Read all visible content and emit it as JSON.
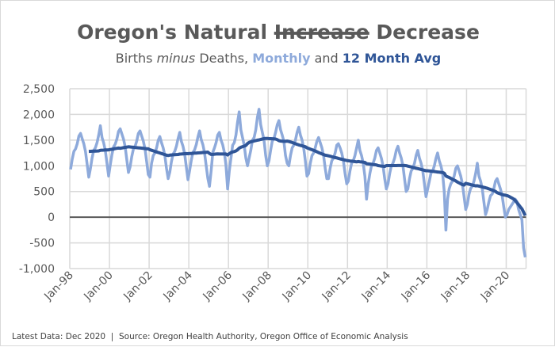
{
  "title": {
    "part1": "Oregon's Natural ",
    "struck": "Increase",
    "part2": " Decrease"
  },
  "subtitle": {
    "part1": "Births ",
    "italic": "minus",
    "part2": " Deaths, ",
    "monthly": "Monthly",
    "and": " and ",
    "avg": "12 Month Avg"
  },
  "footer": "Latest Data: Dec 2020  |  Source: Oregon Health Authority, Oregon Office of Economic Analysis",
  "colors": {
    "monthly": "#8eaadb",
    "avg": "#2f5597",
    "zero_line": "#595959",
    "grid": "#d9d9d9",
    "text": "#595959"
  },
  "chart_data": {
    "type": "line",
    "title": "Oregon's Natural Increase Decrease",
    "subtitle": "Births minus Deaths, Monthly and 12 Month Avg",
    "x_start": "Jan-98",
    "x_end": "Dec-20",
    "x_frequency": "monthly",
    "xticks": [
      "Jan-98",
      "Jan-00",
      "Jan-02",
      "Jan-04",
      "Jan-06",
      "Jan-08",
      "Jan-10",
      "Jan-12",
      "Jan-14",
      "Jan-16",
      "Jan-18",
      "Jan-20"
    ],
    "ylim": [
      -1000,
      2500
    ],
    "yticks": [
      -1000,
      -500,
      0,
      500,
      1000,
      1500,
      2000,
      2500
    ],
    "ytick_labels": [
      "-1,000",
      "-500",
      "0",
      "500",
      "1,000",
      "1,500",
      "2,000",
      "2,500"
    ],
    "grid": true,
    "legend": "none (colored subtitle)",
    "series": [
      {
        "name": "Monthly",
        "years": {
          "1998": [
            930,
            1130,
            1280,
            1330,
            1430,
            1580,
            1630,
            1530,
            1430,
            1280,
            1030,
            780
          ],
          "1999": [
            950,
            1150,
            1300,
            1350,
            1450,
            1600,
            1780,
            1550,
            1450,
            1300,
            1050,
            800
          ],
          "2000": [
            1020,
            1220,
            1370,
            1420,
            1520,
            1670,
            1720,
            1620,
            1520,
            1370,
            1120,
            870
          ],
          "2001": [
            980,
            1180,
            1330,
            1380,
            1480,
            1630,
            1680,
            1580,
            1480,
            1330,
            1080,
            830
          ],
          "2002": [
            780,
            1050,
            1200,
            1250,
            1350,
            1500,
            1570,
            1450,
            1350,
            1200,
            950,
            750
          ],
          "2003": [
            880,
            1080,
            1230,
            1280,
            1380,
            1530,
            1650,
            1480,
            1380,
            1230,
            980,
            730
          ],
          "2004": [
            910,
            1110,
            1260,
            1310,
            1410,
            1560,
            1680,
            1510,
            1410,
            1260,
            1010,
            760
          ],
          "2005": [
            600,
            900,
            1260,
            1350,
            1450,
            1600,
            1650,
            1500,
            1410,
            1260,
            1010,
            550
          ],
          "2006": [
            900,
            1150,
            1400,
            1450,
            1600,
            1850,
            2050,
            1700,
            1550,
            1400,
            1150,
            1000
          ],
          "2007": [
            1150,
            1300,
            1500,
            1550,
            1700,
            1950,
            2100,
            1800,
            1650,
            1500,
            1200,
            1000
          ],
          "2008": [
            1100,
            1300,
            1480,
            1530,
            1650,
            1800,
            1880,
            1700,
            1600,
            1480,
            1200,
            1050
          ],
          "2009": [
            1000,
            1200,
            1350,
            1400,
            1500,
            1650,
            1750,
            1600,
            1500,
            1350,
            1100,
            800
          ],
          "2010": [
            850,
            1050,
            1200,
            1250,
            1350,
            1480,
            1550,
            1450,
            1350,
            1200,
            950,
            750
          ],
          "2011": [
            750,
            950,
            1100,
            1150,
            1250,
            1400,
            1430,
            1350,
            1250,
            1100,
            850,
            650
          ],
          "2012": [
            700,
            900,
            1050,
            1100,
            1200,
            1350,
            1500,
            1300,
            1200,
            1050,
            800,
            350
          ],
          "2013": [
            650,
            850,
            1000,
            1050,
            1150,
            1300,
            1350,
            1250,
            1150,
            1000,
            750,
            550
          ],
          "2014": [
            650,
            850,
            1000,
            1050,
            1150,
            1300,
            1380,
            1250,
            1150,
            1000,
            750,
            500
          ],
          "2015": [
            550,
            750,
            900,
            950,
            1050,
            1200,
            1300,
            1150,
            1050,
            900,
            650,
            400
          ],
          "2016": [
            550,
            700,
            860,
            900,
            1000,
            1150,
            1250,
            1100,
            1000,
            860,
            500,
            -250
          ],
          "2017": [
            350,
            550,
            650,
            700,
            800,
            950,
            1000,
            900,
            800,
            650,
            400,
            150
          ],
          "2018": [
            250,
            450,
            560,
            600,
            700,
            850,
            1050,
            800,
            700,
            560,
            300,
            50
          ],
          "2019": [
            150,
            300,
            420,
            450,
            550,
            700,
            750,
            650,
            550,
            420,
            200,
            0
          ],
          "2020": [
            50,
            150,
            200,
            250,
            300,
            350,
            300,
            150,
            50,
            -50,
            -600,
            -780
          ]
        }
      },
      {
        "name": "12 Month Avg",
        "window_months": 12
      }
    ]
  }
}
